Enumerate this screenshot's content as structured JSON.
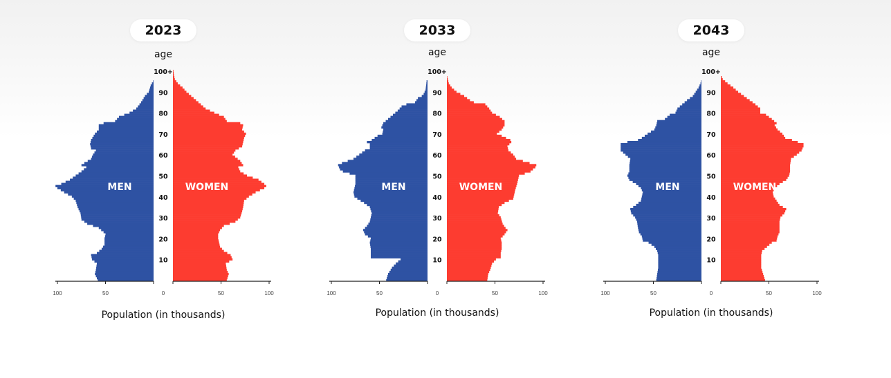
{
  "colors": {
    "men": "#2e52a3",
    "women": "#fd3c30"
  },
  "chart_data": [
    {
      "type": "bar",
      "orientation": "population-pyramid",
      "title": "2023",
      "ylabel": "age",
      "xlabel": "Population (in thousands)",
      "age_ticks": [
        "10",
        "20",
        "30",
        "40",
        "50",
        "60",
        "70",
        "80",
        "90",
        "100+"
      ],
      "x_ticks": [
        "100",
        "50",
        "0",
        "50",
        "100"
      ],
      "xlim": [
        0,
        100
      ],
      "series_labels": {
        "men": "MEN",
        "women": "WOMEN"
      },
      "men": [
        [
          0,
          58
        ],
        [
          3,
          61
        ],
        [
          5,
          60
        ],
        [
          8,
          59
        ],
        [
          10,
          64
        ],
        [
          12,
          65
        ],
        [
          13,
          59
        ],
        [
          15,
          54
        ],
        [
          17,
          51
        ],
        [
          20,
          51
        ],
        [
          22,
          50
        ],
        [
          23,
          52
        ],
        [
          25,
          57
        ],
        [
          27,
          69
        ],
        [
          29,
          75
        ],
        [
          32,
          76
        ],
        [
          35,
          79
        ],
        [
          38,
          81
        ],
        [
          40,
          85
        ],
        [
          42,
          93
        ],
        [
          44,
          100
        ],
        [
          45,
          102
        ],
        [
          46,
          96
        ],
        [
          48,
          87
        ],
        [
          50,
          81
        ],
        [
          52,
          75
        ],
        [
          54,
          70
        ],
        [
          55,
          75
        ],
        [
          56,
          72
        ],
        [
          58,
          65
        ],
        [
          60,
          63
        ],
        [
          62,
          60
        ],
        [
          63,
          65
        ],
        [
          65,
          66
        ],
        [
          67,
          65
        ],
        [
          70,
          61
        ],
        [
          72,
          57
        ],
        [
          74,
          57
        ],
        [
          75,
          52
        ],
        [
          76,
          40
        ],
        [
          78,
          36
        ],
        [
          80,
          25
        ],
        [
          82,
          18
        ],
        [
          85,
          13
        ],
        [
          88,
          9
        ],
        [
          90,
          5
        ],
        [
          93,
          3
        ],
        [
          95,
          0.5
        ],
        [
          96,
          0
        ]
      ],
      "women": [
        [
          0,
          56
        ],
        [
          3,
          58
        ],
        [
          5,
          56
        ],
        [
          8,
          55
        ],
        [
          10,
          62
        ],
        [
          12,
          60
        ],
        [
          14,
          53
        ],
        [
          16,
          49
        ],
        [
          18,
          48
        ],
        [
          20,
          47
        ],
        [
          22,
          47
        ],
        [
          24,
          49
        ],
        [
          26,
          53
        ],
        [
          28,
          65
        ],
        [
          30,
          70
        ],
        [
          33,
          72
        ],
        [
          35,
          73
        ],
        [
          38,
          74
        ],
        [
          40,
          79
        ],
        [
          42,
          86
        ],
        [
          44,
          95
        ],
        [
          45,
          97
        ],
        [
          46,
          95
        ],
        [
          48,
          89
        ],
        [
          50,
          77
        ],
        [
          52,
          70
        ],
        [
          54,
          68
        ],
        [
          55,
          73
        ],
        [
          57,
          70
        ],
        [
          60,
          62
        ],
        [
          62,
          65
        ],
        [
          64,
          72
        ],
        [
          66,
          73
        ],
        [
          68,
          74
        ],
        [
          70,
          76
        ],
        [
          72,
          72
        ],
        [
          74,
          73
        ],
        [
          75,
          70
        ],
        [
          76,
          56
        ],
        [
          78,
          53
        ],
        [
          80,
          43
        ],
        [
          82,
          34
        ],
        [
          84,
          29
        ],
        [
          86,
          24
        ],
        [
          88,
          19
        ],
        [
          90,
          14
        ],
        [
          92,
          10
        ],
        [
          94,
          5
        ],
        [
          96,
          2
        ],
        [
          98,
          1
        ],
        [
          100,
          0.5
        ]
      ]
    },
    {
      "type": "bar",
      "orientation": "population-pyramid",
      "title": "2033",
      "ylabel": "age",
      "xlabel": "Population (in thousands)",
      "age_ticks": [
        "10",
        "20",
        "30",
        "40",
        "50",
        "60",
        "70",
        "80",
        "90",
        "100+"
      ],
      "x_ticks": [
        "100",
        "50",
        "0",
        "50",
        "100"
      ],
      "xlim": [
        0,
        100
      ],
      "series_labels": {
        "men": "MEN",
        "women": "WOMEN"
      },
      "men": [
        [
          0,
          43
        ],
        [
          3,
          41
        ],
        [
          6,
          37
        ],
        [
          8,
          33
        ],
        [
          10,
          28
        ],
        [
          11,
          59
        ],
        [
          15,
          59
        ],
        [
          18,
          60
        ],
        [
          20,
          59
        ],
        [
          22,
          65
        ],
        [
          24,
          67
        ],
        [
          26,
          63
        ],
        [
          28,
          60
        ],
        [
          30,
          59
        ],
        [
          32,
          58
        ],
        [
          35,
          60
        ],
        [
          37,
          66
        ],
        [
          39,
          73
        ],
        [
          40,
          76
        ],
        [
          42,
          77
        ],
        [
          44,
          76
        ],
        [
          46,
          75
        ],
        [
          50,
          75
        ],
        [
          51,
          81
        ],
        [
          52,
          88
        ],
        [
          53,
          91
        ],
        [
          55,
          93
        ],
        [
          56,
          89
        ],
        [
          58,
          77
        ],
        [
          60,
          71
        ],
        [
          62,
          65
        ],
        [
          63,
          60
        ],
        [
          65,
          60
        ],
        [
          66,
          63
        ],
        [
          67,
          58
        ],
        [
          69,
          52
        ],
        [
          70,
          47
        ],
        [
          72,
          46
        ],
        [
          73,
          48
        ],
        [
          75,
          46
        ],
        [
          77,
          41
        ],
        [
          79,
          36
        ],
        [
          81,
          31
        ],
        [
          83,
          27
        ],
        [
          84,
          22
        ],
        [
          85,
          13
        ],
        [
          87,
          10
        ],
        [
          88,
          6
        ],
        [
          89,
          4
        ],
        [
          91,
          2
        ],
        [
          95,
          1
        ],
        [
          96,
          0
        ]
      ],
      "women": [
        [
          0,
          42
        ],
        [
          3,
          43
        ],
        [
          5,
          45
        ],
        [
          8,
          47
        ],
        [
          10,
          51
        ],
        [
          11,
          56
        ],
        [
          13,
          56
        ],
        [
          15,
          57
        ],
        [
          18,
          57
        ],
        [
          20,
          56
        ],
        [
          22,
          60
        ],
        [
          24,
          63
        ],
        [
          25,
          61
        ],
        [
          27,
          58
        ],
        [
          30,
          56
        ],
        [
          32,
          53
        ],
        [
          35,
          54
        ],
        [
          37,
          60
        ],
        [
          39,
          69
        ],
        [
          41,
          70
        ],
        [
          43,
          71
        ],
        [
          46,
          73
        ],
        [
          48,
          74
        ],
        [
          50,
          75
        ],
        [
          51,
          81
        ],
        [
          52,
          87
        ],
        [
          54,
          92
        ],
        [
          55,
          93
        ],
        [
          56,
          86
        ],
        [
          58,
          72
        ],
        [
          60,
          69
        ],
        [
          62,
          64
        ],
        [
          64,
          63
        ],
        [
          66,
          67
        ],
        [
          67,
          66
        ],
        [
          69,
          57
        ],
        [
          70,
          52
        ],
        [
          72,
          57
        ],
        [
          74,
          60
        ],
        [
          76,
          60
        ],
        [
          78,
          55
        ],
        [
          80,
          47
        ],
        [
          82,
          44
        ],
        [
          84,
          40
        ],
        [
          85,
          28
        ],
        [
          86,
          24
        ],
        [
          88,
          18
        ],
        [
          90,
          10
        ],
        [
          92,
          5
        ],
        [
          94,
          2
        ],
        [
          96,
          1
        ],
        [
          97,
          0.5
        ]
      ]
    },
    {
      "type": "bar",
      "orientation": "population-pyramid",
      "title": "2043",
      "ylabel": "age",
      "xlabel": "Population (in thousands)",
      "age_ticks": [
        "10",
        "20",
        "30",
        "40",
        "50",
        "60",
        "70",
        "80",
        "90",
        "100+"
      ],
      "x_ticks": [
        "100",
        "50",
        "0",
        "50",
        "100"
      ],
      "xlim": [
        0,
        100
      ],
      "series_labels": {
        "men": "MEN",
        "women": "WOMEN"
      },
      "men": [
        [
          0,
          47
        ],
        [
          3,
          46
        ],
        [
          6,
          45
        ],
        [
          12,
          45
        ],
        [
          14,
          46
        ],
        [
          16,
          49
        ],
        [
          18,
          55
        ],
        [
          19,
          61
        ],
        [
          21,
          62
        ],
        [
          23,
          65
        ],
        [
          25,
          66
        ],
        [
          28,
          67
        ],
        [
          30,
          69
        ],
        [
          32,
          73
        ],
        [
          34,
          74
        ],
        [
          36,
          68
        ],
        [
          38,
          63
        ],
        [
          40,
          62
        ],
        [
          42,
          61
        ],
        [
          44,
          63
        ],
        [
          46,
          68
        ],
        [
          48,
          75
        ],
        [
          50,
          77
        ],
        [
          52,
          75
        ],
        [
          55,
          75
        ],
        [
          58,
          74
        ],
        [
          60,
          79
        ],
        [
          62,
          84
        ],
        [
          65,
          84
        ],
        [
          66,
          77
        ],
        [
          67,
          66
        ],
        [
          68,
          62
        ],
        [
          70,
          56
        ],
        [
          72,
          49
        ],
        [
          74,
          47
        ],
        [
          76,
          46
        ],
        [
          77,
          38
        ],
        [
          79,
          33
        ],
        [
          80,
          27
        ],
        [
          82,
          25
        ],
        [
          84,
          20
        ],
        [
          86,
          15
        ],
        [
          88,
          9
        ],
        [
          90,
          6
        ],
        [
          92,
          3
        ],
        [
          94,
          1
        ],
        [
          95,
          0.5
        ],
        [
          96,
          0
        ]
      ],
      "women": [
        [
          0,
          46
        ],
        [
          3,
          44
        ],
        [
          6,
          42
        ],
        [
          12,
          42
        ],
        [
          14,
          43
        ],
        [
          16,
          48
        ],
        [
          18,
          53
        ],
        [
          19,
          58
        ],
        [
          21,
          59
        ],
        [
          23,
          61
        ],
        [
          28,
          61
        ],
        [
          30,
          62
        ],
        [
          32,
          66
        ],
        [
          34,
          68
        ],
        [
          36,
          61
        ],
        [
          38,
          58
        ],
        [
          40,
          55
        ],
        [
          42,
          54
        ],
        [
          44,
          56
        ],
        [
          46,
          61
        ],
        [
          48,
          68
        ],
        [
          50,
          71
        ],
        [
          52,
          72
        ],
        [
          55,
          72
        ],
        [
          58,
          73
        ],
        [
          60,
          79
        ],
        [
          62,
          84
        ],
        [
          64,
          86
        ],
        [
          65,
          86
        ],
        [
          66,
          80
        ],
        [
          67,
          74
        ],
        [
          68,
          67
        ],
        [
          70,
          64
        ],
        [
          72,
          59
        ],
        [
          74,
          56
        ],
        [
          75,
          58
        ],
        [
          77,
          53
        ],
        [
          79,
          47
        ],
        [
          80,
          41
        ],
        [
          82,
          41
        ],
        [
          84,
          36
        ],
        [
          86,
          30
        ],
        [
          88,
          24
        ],
        [
          90,
          18
        ],
        [
          92,
          13
        ],
        [
          94,
          7
        ],
        [
          96,
          2
        ],
        [
          97,
          1
        ]
      ]
    }
  ]
}
